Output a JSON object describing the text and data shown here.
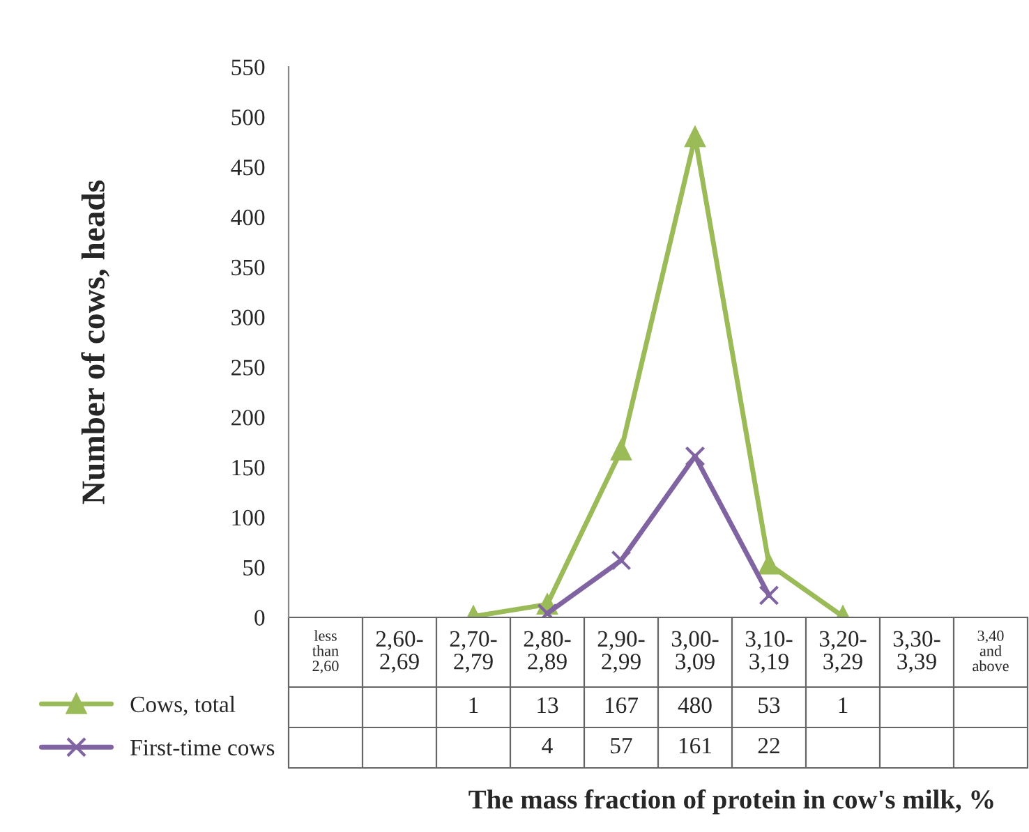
{
  "chart_data": {
    "type": "line",
    "categories": [
      "less than 2,60",
      "2,60-2,69",
      "2,70-2,79",
      "2,80-2,89",
      "2,90-2,99",
      "3,00-3,09",
      "3,10-3,19",
      "3,20-3,29",
      "3,30-3,39",
      "3,40 and above"
    ],
    "series": [
      {
        "name": "Cows, total",
        "color": "#9bbb59",
        "marker": "triangle",
        "values": [
          null,
          null,
          1,
          13,
          167,
          480,
          53,
          1,
          null,
          null
        ]
      },
      {
        "name": "First-time cows",
        "color": "#8064a2",
        "marker": "cross",
        "values": [
          null,
          null,
          null,
          4,
          57,
          161,
          22,
          null,
          null,
          null
        ]
      }
    ],
    "ylabel": "Number of cows, heads",
    "xlabel": "The mass fraction of protein in cow's milk, %",
    "ylim": [
      0,
      550
    ],
    "yticks": [
      0,
      50,
      100,
      150,
      200,
      250,
      300,
      350,
      400,
      450,
      500,
      550
    ],
    "grid": false,
    "legend": "bottom left",
    "data_labels": true,
    "line_style": "solid"
  }
}
